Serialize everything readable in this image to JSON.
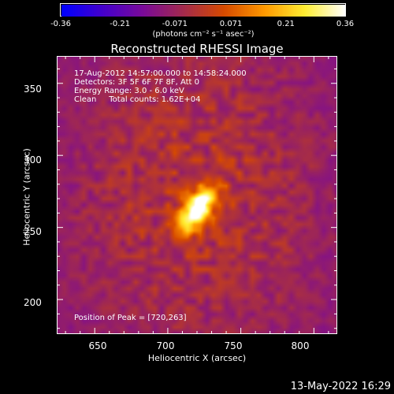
{
  "chart_data": {
    "type": "heatmap",
    "title": "Reconstructed RHESSI Image",
    "xlabel": "Heliocentric X (arcsec)",
    "ylabel": "Heliocentric Y (arcsec)",
    "xlim": [
      624,
      816
    ],
    "ylim": [
      176,
      369
    ],
    "x_ticks": [
      "650",
      "700",
      "750",
      "800"
    ],
    "x_tick_values": [
      650,
      700,
      750,
      800
    ],
    "y_ticks": [
      "350",
      "300",
      "250",
      "200"
    ],
    "y_tick_values": [
      350,
      300,
      250,
      200
    ],
    "colorbar": {
      "min": -0.36,
      "max": 0.36,
      "tick_labels": [
        "-0.36",
        "-0.21",
        "-0.071",
        "0.071",
        "0.21",
        "0.36"
      ],
      "tick_values": [
        -0.36,
        -0.21,
        -0.071,
        0.071,
        0.21,
        0.36
      ],
      "label": "(photons cm⁻² s⁻¹ asec⁻²)",
      "colors": [
        "#0000ff",
        "#4400cc",
        "#7a0a99",
        "#a32a4d",
        "#d64a00",
        "#ff9900",
        "#ffee33",
        "#ffffff"
      ]
    },
    "peak": {
      "x": 720,
      "y": 263,
      "value": 0.36
    },
    "info_lines": [
      "17-Aug-2012 14:57:00.000 to 14:58:24.000",
      "Detectors: 3F 5F 6F 7F 8F, Att 0",
      "Energy Range: 3.0 - 6.0 keV",
      "Clean     Total counts: 1.62E+04"
    ],
    "peak_label": "Position of Peak = [720,263]"
  },
  "timestamp": "13-May-2022 16:29"
}
